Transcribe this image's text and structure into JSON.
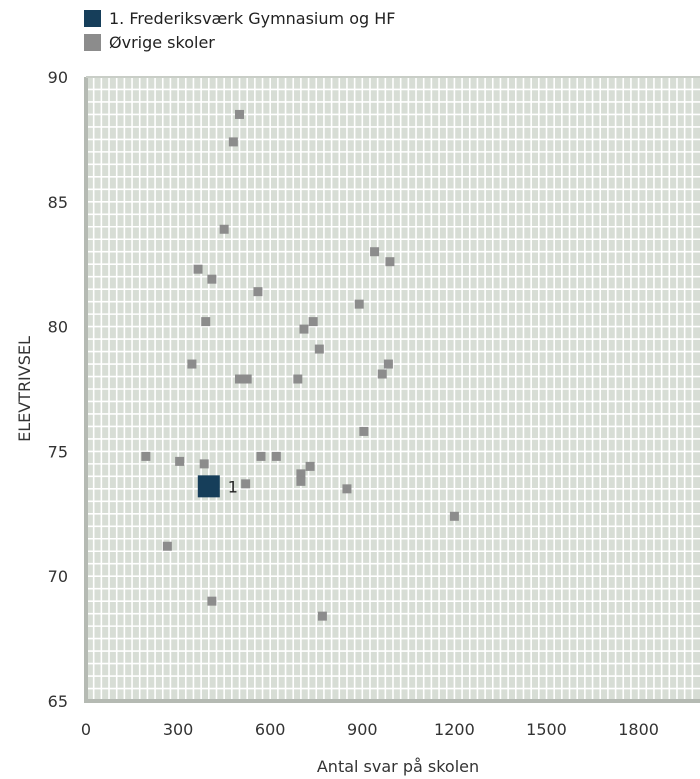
{
  "chart_data": {
    "type": "scatter",
    "title": "",
    "xlabel": "Antal svar på skolen",
    "ylabel": "ELEVTRIVSEL",
    "xlim": [
      0,
      2000
    ],
    "ylim": [
      65,
      90
    ],
    "xticks": [
      0,
      300,
      600,
      900,
      1200,
      1500,
      1800
    ],
    "yticks": [
      65,
      70,
      75,
      80,
      85,
      90
    ],
    "grid": true,
    "legend_position": "top-left",
    "series": [
      {
        "name": "1. Frederiksværk Gymnasium og HF",
        "color": "#163e5a",
        "marker": "large-square",
        "points": [
          {
            "x": 400,
            "y": 73.6,
            "label": "1"
          }
        ]
      },
      {
        "name": "Øvrige skoler",
        "color": "#8c8c8c",
        "marker": "square",
        "points": [
          {
            "x": 500,
            "y": 88.5
          },
          {
            "x": 480,
            "y": 87.4
          },
          {
            "x": 450,
            "y": 83.9
          },
          {
            "x": 940,
            "y": 83.0
          },
          {
            "x": 990,
            "y": 82.6
          },
          {
            "x": 365,
            "y": 82.3
          },
          {
            "x": 410,
            "y": 81.9
          },
          {
            "x": 560,
            "y": 81.4
          },
          {
            "x": 890,
            "y": 80.9
          },
          {
            "x": 390,
            "y": 80.2
          },
          {
            "x": 740,
            "y": 80.2
          },
          {
            "x": 710,
            "y": 79.9
          },
          {
            "x": 760,
            "y": 79.1
          },
          {
            "x": 345,
            "y": 78.5
          },
          {
            "x": 985,
            "y": 78.5
          },
          {
            "x": 965,
            "y": 78.1
          },
          {
            "x": 500,
            "y": 77.9
          },
          {
            "x": 525,
            "y": 77.9
          },
          {
            "x": 690,
            "y": 77.9
          },
          {
            "x": 905,
            "y": 75.8
          },
          {
            "x": 195,
            "y": 74.8
          },
          {
            "x": 570,
            "y": 74.8
          },
          {
            "x": 620,
            "y": 74.8
          },
          {
            "x": 305,
            "y": 74.6
          },
          {
            "x": 385,
            "y": 74.5
          },
          {
            "x": 730,
            "y": 74.4
          },
          {
            "x": 700,
            "y": 74.1
          },
          {
            "x": 700,
            "y": 73.8
          },
          {
            "x": 520,
            "y": 73.7
          },
          {
            "x": 850,
            "y": 73.5
          },
          {
            "x": 1200,
            "y": 72.4
          },
          {
            "x": 265,
            "y": 71.2
          },
          {
            "x": 410,
            "y": 69.0
          },
          {
            "x": 770,
            "y": 68.4
          }
        ]
      }
    ]
  }
}
